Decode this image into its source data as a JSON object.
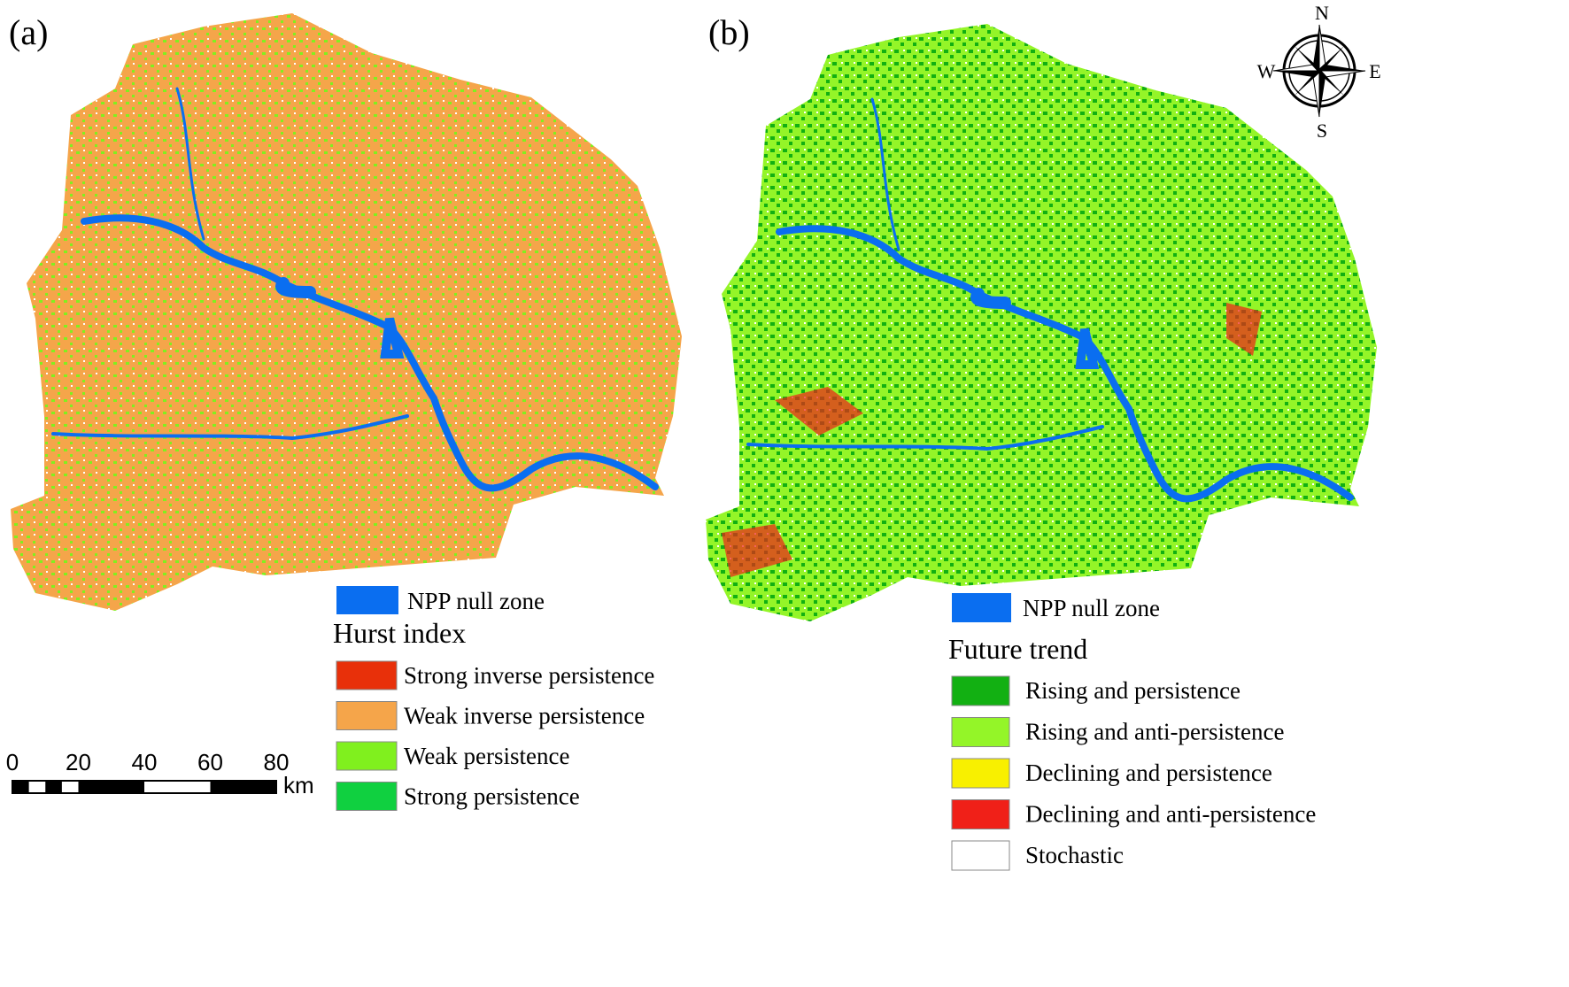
{
  "panels": [
    {
      "label": "(a)",
      "null_label": "NPP null zone",
      "null_color": "#0a6ef0",
      "legend_title": "Hurst index",
      "items": [
        {
          "label": "Strong inverse persistence",
          "color": "#e8300a"
        },
        {
          "label": "Weak inverse persistence",
          "color": "#f5a54a"
        },
        {
          "label": "Weak persistence",
          "color": "#80f01e"
        },
        {
          "label": "Strong persistence",
          "color": "#10d040"
        }
      ]
    },
    {
      "label": "(b)",
      "null_label": "NPP null zone",
      "null_color": "#0a6ef0",
      "legend_title": "Future trend",
      "items": [
        {
          "label": "Rising and persistence",
          "color": "#12b012"
        },
        {
          "label": "Rising and anti-persistence",
          "color": "#94f528"
        },
        {
          "label": "Declining and persistence",
          "color": "#f8f000"
        },
        {
          "label": "Declining and anti-persistence",
          "color": "#f02018"
        },
        {
          "label": "Stochastic",
          "color": "#ffffff"
        }
      ]
    }
  ],
  "scale_bar": {
    "ticks": [
      0,
      20,
      40,
      60,
      80
    ],
    "unit": "km"
  },
  "compass": {
    "north": "N",
    "south": "S",
    "west": "W",
    "east": "E"
  }
}
